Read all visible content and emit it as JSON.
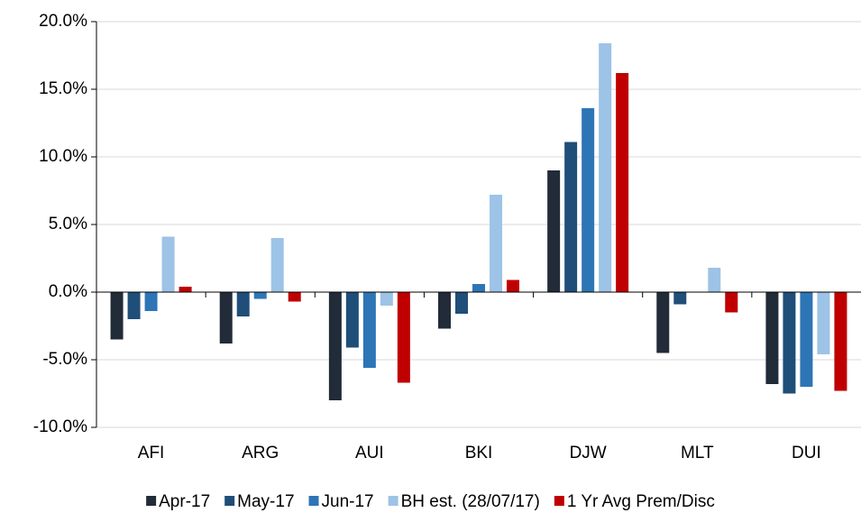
{
  "chart_data": {
    "type": "bar",
    "categories": [
      "AFI",
      "ARG",
      "AUI",
      "BKI",
      "DJW",
      "MLT",
      "DUI"
    ],
    "series": [
      {
        "name": "Apr-17",
        "color": "#222b38",
        "values": [
          -3.5,
          -3.8,
          -8.0,
          -2.7,
          9.0,
          -4.5,
          -6.8
        ]
      },
      {
        "name": "May-17",
        "color": "#1f4e79",
        "values": [
          -2.0,
          -1.8,
          -4.1,
          -1.6,
          11.1,
          -0.9,
          -7.5
        ]
      },
      {
        "name": "Jun-17",
        "color": "#2e75b6",
        "values": [
          -1.4,
          -0.5,
          -5.6,
          0.6,
          13.6,
          0,
          -7.0
        ]
      },
      {
        "name": "BH est. (28/07/17)",
        "color": "#9dc3e6",
        "values": [
          4.1,
          4.0,
          -1.0,
          7.2,
          18.4,
          1.8,
          -4.6
        ]
      },
      {
        "name": "1 Yr Avg Prem/Disc",
        "color": "#c00000",
        "values": [
          0.4,
          -0.7,
          -6.7,
          0.9,
          16.2,
          -1.5,
          -7.3
        ]
      }
    ],
    "ylim": [
      -10,
      20
    ],
    "yticks": [
      {
        "value": -10,
        "label": "-10.0%"
      },
      {
        "value": -5,
        "label": "-5.0%"
      },
      {
        "value": 0,
        "label": "0.0%"
      },
      {
        "value": 5,
        "label": "5.0%"
      },
      {
        "value": 10,
        "label": "10.0%"
      },
      {
        "value": 15,
        "label": "15.0%"
      },
      {
        "value": 20,
        "label": "20.0%"
      }
    ],
    "grid": true,
    "legend": "bottom"
  }
}
